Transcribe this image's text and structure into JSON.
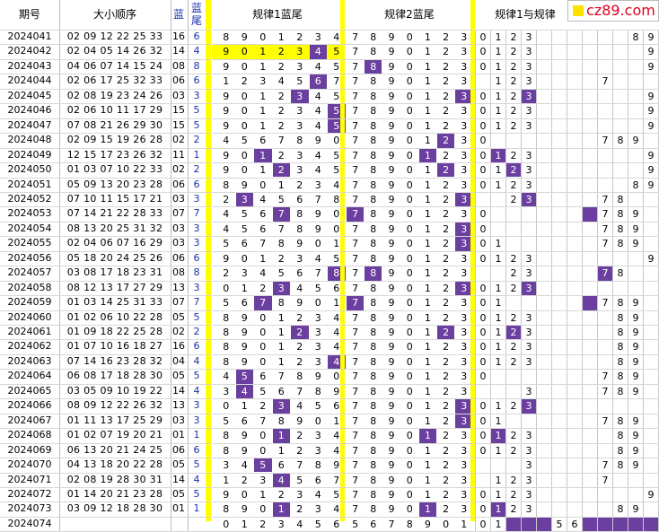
{
  "headers": {
    "period": "期号",
    "draw": "大小顺序",
    "blue": "蓝",
    "blue_tail": "蓝尾",
    "rule1": "规律1蓝尾",
    "rule2": "规律2蓝尾",
    "rule12": "规律1与规律"
  },
  "logo_text": "cz89.com",
  "colors": {
    "mark": "#6b3fa0",
    "highlight": "#ffff00",
    "separator": "#ffff00",
    "blue_text": "#1a2fb0",
    "logo": "#e0001b"
  },
  "rows": [
    {
      "period": "2024041",
      "red": "02 09 12 22 25 33",
      "blue": "16",
      "tail": "6",
      "r1": "8 9 0 1 2 3 4",
      "r1m": [],
      "r2": "7 8 9 0 1 2 3",
      "r2m": [],
      "c": [
        "0",
        "1",
        "2",
        "3",
        "",
        "",
        "",
        "",
        "",
        "",
        "8",
        "9"
      ],
      "cm": [],
      "hl": false
    },
    {
      "period": "2024042",
      "red": "02 04 05 14 26 32",
      "blue": "14",
      "tail": "4",
      "r1": "9 0 1 2 3 4 5",
      "r1m": [
        5
      ],
      "r2": "7 8 9 0 1 2 3",
      "r2m": [],
      "c": [
        "0",
        "1",
        "2",
        "3",
        "",
        "",
        "",
        "",
        "",
        "",
        "",
        "9"
      ],
      "cm": [],
      "hl": true
    },
    {
      "period": "2024043",
      "red": "04 06 07 14 15 24",
      "blue": "08",
      "tail": "8",
      "r1": "9 0 1 2 3 4 5",
      "r1m": [],
      "r2": "7 8 9 0 1 2 3",
      "r2m": [
        1
      ],
      "c": [
        "0",
        "1",
        "2",
        "3",
        "",
        "",
        "",
        "",
        "",
        "",
        "",
        "9"
      ],
      "cm": [],
      "hl": false
    },
    {
      "period": "2024044",
      "red": "02 06 17 25 32 33",
      "blue": "06",
      "tail": "6",
      "r1": "1 2 3 4 5 6 7",
      "r1m": [
        5
      ],
      "r2": "7 8 9 0 1 2 3",
      "r2m": [],
      "c": [
        "",
        "1",
        "2",
        "3",
        "",
        "",
        "",
        "",
        "7",
        "",
        "",
        ""
      ],
      "cm": [],
      "hl": false
    },
    {
      "period": "2024045",
      "red": "02 08 19 23 24 26",
      "blue": "03",
      "tail": "3",
      "r1": "9 0 1 2 3 4 5",
      "r1m": [
        4
      ],
      "r2": "7 8 9 0 1 2 3",
      "r2m": [
        6
      ],
      "c": [
        "0",
        "1",
        "2",
        "3",
        "",
        "",
        "",
        "",
        "",
        "",
        "",
        "9"
      ],
      "cm": [
        3
      ],
      "hl": false
    },
    {
      "period": "2024046",
      "red": "02 06 10 11 17 29",
      "blue": "15",
      "tail": "5",
      "r1": "9 0 1 2 3 4 5",
      "r1m": [
        6
      ],
      "r2": "7 8 9 0 1 2 3",
      "r2m": [],
      "c": [
        "0",
        "1",
        "2",
        "3",
        "",
        "",
        "",
        "",
        "",
        "",
        "",
        "9"
      ],
      "cm": [],
      "hl": false
    },
    {
      "period": "2024047",
      "red": "07 08 21 26 29 30",
      "blue": "15",
      "tail": "5",
      "r1": "9 0 1 2 3 4 5",
      "r1m": [
        6
      ],
      "r2": "7 8 9 0 1 2 3",
      "r2m": [],
      "c": [
        "0",
        "1",
        "2",
        "3",
        "",
        "",
        "",
        "",
        "",
        "",
        "",
        "9"
      ],
      "cm": [],
      "hl": false
    },
    {
      "period": "2024048",
      "red": "02 09 15 19 26 28",
      "blue": "02",
      "tail": "2",
      "r1": "4 5 6 7 8 9 0",
      "r1m": [],
      "r2": "7 8 9 0 1 2 3",
      "r2m": [
        5
      ],
      "c": [
        "0",
        "",
        "",
        "",
        "",
        "",
        "",
        "",
        "7",
        "8",
        "9",
        ""
      ],
      "cm": [],
      "hl": false
    },
    {
      "period": "2024049",
      "red": "12 15 17 23 26 32",
      "blue": "11",
      "tail": "1",
      "r1": "9 0 1 2 3 4 5",
      "r1m": [
        2
      ],
      "r2": "7 8 9 0 1 2 3",
      "r2m": [
        4
      ],
      "c": [
        "0",
        "1",
        "2",
        "3",
        "",
        "",
        "",
        "",
        "",
        "",
        "",
        "9"
      ],
      "cm": [
        1
      ],
      "hl": false
    },
    {
      "period": "2024050",
      "red": "01 03 07 10 22 33",
      "blue": "02",
      "tail": "2",
      "r1": "9 0 1 2 3 4 5",
      "r1m": [
        3
      ],
      "r2": "7 8 9 0 1 2 3",
      "r2m": [
        5
      ],
      "c": [
        "0",
        "1",
        "2",
        "3",
        "",
        "",
        "",
        "",
        "",
        "",
        "",
        "9"
      ],
      "cm": [
        2
      ],
      "hl": false
    },
    {
      "period": "2024051",
      "red": "05 09 13 20 23 28",
      "blue": "06",
      "tail": "6",
      "r1": "8 9 0 1 2 3 4",
      "r1m": [],
      "r2": "7 8 9 0 1 2 3",
      "r2m": [],
      "c": [
        "0",
        "1",
        "2",
        "3",
        "",
        "",
        "",
        "",
        "",
        "",
        "8",
        "9"
      ],
      "cm": [],
      "hl": false
    },
    {
      "period": "2024052",
      "red": "07 10 11 15 17 21",
      "blue": "03",
      "tail": "3",
      "r1": "2 3 4 5 6 7 8",
      "r1m": [
        1
      ],
      "r2": "7 8 9 0 1 2 3",
      "r2m": [
        6
      ],
      "c": [
        "",
        "",
        "2",
        "3",
        "",
        "",
        "",
        "",
        "7",
        "8",
        "",
        ""
      ],
      "cm": [
        3
      ],
      "hl": false
    },
    {
      "period": "2024053",
      "red": "07 14 21 22 28 33",
      "blue": "07",
      "tail": "7",
      "r1": "4 5 6 7 8 9 0",
      "r1m": [
        3
      ],
      "r2": "7 8 9 0 1 2 3",
      "r2m": [
        0
      ],
      "c": [
        "0",
        "",
        "",
        "",
        "",
        "",
        "",
        "",
        "7",
        "8",
        "9",
        ""
      ],
      "cm": [
        7
      ],
      "hl": false
    },
    {
      "period": "2024054",
      "red": "08 13 20 25 31 32",
      "blue": "03",
      "tail": "3",
      "r1": "4 5 6 7 8 9 0",
      "r1m": [],
      "r2": "7 8 9 0 1 2 3",
      "r2m": [
        6
      ],
      "c": [
        "0",
        "",
        "",
        "",
        "",
        "",
        "",
        "",
        "7",
        "8",
        "9",
        ""
      ],
      "cm": [],
      "hl": false
    },
    {
      "period": "2024055",
      "red": "02 04 06 07 16 29",
      "blue": "03",
      "tail": "3",
      "r1": "5 6 7 8 9 0 1",
      "r1m": [],
      "r2": "7 8 9 0 1 2 3",
      "r2m": [
        6
      ],
      "c": [
        "0",
        "1",
        "",
        "",
        "",
        "",
        "",
        "",
        "7",
        "8",
        "9",
        ""
      ],
      "cm": [],
      "hl": false
    },
    {
      "period": "2024056",
      "red": "05 18 20 24 25 26",
      "blue": "06",
      "tail": "6",
      "r1": "9 0 1 2 3 4 5",
      "r1m": [],
      "r2": "7 8 9 0 1 2 3",
      "r2m": [],
      "c": [
        "0",
        "1",
        "2",
        "3",
        "",
        "",
        "",
        "",
        "",
        "",
        "",
        "9"
      ],
      "cm": [],
      "hl": false
    },
    {
      "period": "2024057",
      "red": "03 08 17 18 23 31",
      "blue": "08",
      "tail": "8",
      "r1": "2 3 4 5 6 7 8",
      "r1m": [
        6
      ],
      "r2": "7 8 9 0 1 2 3",
      "r2m": [
        1
      ],
      "c": [
        "",
        "",
        "2",
        "3",
        "",
        "",
        "",
        "",
        "7",
        "8",
        "",
        ""
      ],
      "cm": [
        8
      ],
      "hl": false
    },
    {
      "period": "2024058",
      "red": "08 12 13 17 27 29",
      "blue": "13",
      "tail": "3",
      "r1": "0 1 2 3 4 5 6",
      "r1m": [
        3
      ],
      "r2": "7 8 9 0 1 2 3",
      "r2m": [
        6
      ],
      "c": [
        "0",
        "1",
        "2",
        "3",
        "",
        "",
        "",
        "",
        "",
        "",
        "",
        ""
      ],
      "cm": [
        3
      ],
      "hl": false
    },
    {
      "period": "2024059",
      "red": "01 03 14 25 31 33",
      "blue": "07",
      "tail": "7",
      "r1": "5 6 7 8 9 0 1",
      "r1m": [
        2
      ],
      "r2": "7 8 9 0 1 2 3",
      "r2m": [
        0
      ],
      "c": [
        "0",
        "1",
        "",
        "",
        "",
        "",
        "",
        "",
        "7",
        "8",
        "9",
        ""
      ],
      "cm": [
        7
      ],
      "hl": false
    },
    {
      "period": "2024060",
      "red": "01 02 06 10 22 28",
      "blue": "05",
      "tail": "5",
      "r1": "8 9 0 1 2 3 4",
      "r1m": [],
      "r2": "7 8 9 0 1 2 3",
      "r2m": [],
      "c": [
        "0",
        "1",
        "2",
        "3",
        "",
        "",
        "",
        "",
        "",
        "8",
        "9",
        ""
      ],
      "cm": [],
      "hl": false
    },
    {
      "period": "2024061",
      "red": "01 09 18 22 25 28",
      "blue": "02",
      "tail": "2",
      "r1": "8 9 0 1 2 3 4",
      "r1m": [
        4
      ],
      "r2": "7 8 9 0 1 2 3",
      "r2m": [
        5
      ],
      "c": [
        "0",
        "1",
        "2",
        "3",
        "",
        "",
        "",
        "",
        "",
        "8",
        "9",
        ""
      ],
      "cm": [
        2
      ],
      "hl": false
    },
    {
      "period": "2024062",
      "red": "01 07 10 16 18 27",
      "blue": "16",
      "tail": "6",
      "r1": "8 9 0 1 2 3 4",
      "r1m": [],
      "r2": "7 8 9 0 1 2 3",
      "r2m": [],
      "c": [
        "0",
        "1",
        "2",
        "3",
        "",
        "",
        "",
        "",
        "",
        "8",
        "9",
        ""
      ],
      "cm": [],
      "hl": false
    },
    {
      "period": "2024063",
      "red": "07 14 16 23 28 32",
      "blue": "04",
      "tail": "4",
      "r1": "8 9 0 1 2 3 4",
      "r1m": [
        6
      ],
      "r2": "7 8 9 0 1 2 3",
      "r2m": [],
      "c": [
        "0",
        "1",
        "2",
        "3",
        "",
        "",
        "",
        "",
        "",
        "8",
        "9",
        ""
      ],
      "cm": [],
      "hl": false
    },
    {
      "period": "2024064",
      "red": "06 08 17 18 28 30",
      "blue": "05",
      "tail": "5",
      "r1": "4 5 6 7 8 9 0",
      "r1m": [
        1
      ],
      "r2": "7 8 9 0 1 2 3",
      "r2m": [],
      "c": [
        "0",
        "",
        "",
        "",
        "",
        "",
        "",
        "",
        "7",
        "8",
        "9",
        ""
      ],
      "cm": [],
      "hl": false
    },
    {
      "period": "2024065",
      "red": "03 05 09 10 19 22",
      "blue": "14",
      "tail": "4",
      "r1": "3 4 5 6 7 8 9",
      "r1m": [
        1
      ],
      "r2": "7 8 9 0 1 2 3",
      "r2m": [],
      "c": [
        "",
        "",
        "",
        "3",
        "",
        "",
        "",
        "",
        "7",
        "8",
        "9",
        ""
      ],
      "cm": [],
      "hl": false
    },
    {
      "period": "2024066",
      "red": "08 09 12 22 26 32",
      "blue": "13",
      "tail": "3",
      "r1": "0 1 2 3 4 5 6",
      "r1m": [
        3
      ],
      "r2": "7 8 9 0 1 2 3",
      "r2m": [
        6
      ],
      "c": [
        "0",
        "1",
        "2",
        "3",
        "",
        "",
        "",
        "",
        "",
        "",
        "",
        ""
      ],
      "cm": [
        3
      ],
      "hl": false
    },
    {
      "period": "2024067",
      "red": "01 11 13 17 25 29",
      "blue": "03",
      "tail": "3",
      "r1": "5 6 7 8 9 0 1",
      "r1m": [],
      "r2": "7 8 9 0 1 2 3",
      "r2m": [
        6
      ],
      "c": [
        "0",
        "1",
        "",
        "",
        "",
        "",
        "",
        "",
        "7",
        "8",
        "9",
        ""
      ],
      "cm": [],
      "hl": false
    },
    {
      "period": "2024068",
      "red": "01 02 07 19 20 21",
      "blue": "01",
      "tail": "1",
      "r1": "8 9 0 1 2 3 4",
      "r1m": [
        3
      ],
      "r2": "7 8 9 0 1 2 3",
      "r2m": [
        4
      ],
      "c": [
        "0",
        "1",
        "2",
        "3",
        "",
        "",
        "",
        "",
        "",
        "8",
        "9",
        ""
      ],
      "cm": [
        1
      ],
      "hl": false
    },
    {
      "period": "2024069",
      "red": "06 13 20 21 24 25",
      "blue": "06",
      "tail": "6",
      "r1": "8 9 0 1 2 3 4",
      "r1m": [],
      "r2": "7 8 9 0 1 2 3",
      "r2m": [],
      "c": [
        "0",
        "1",
        "2",
        "3",
        "",
        "",
        "",
        "",
        "",
        "8",
        "9",
        ""
      ],
      "cm": [],
      "hl": false
    },
    {
      "period": "2024070",
      "red": "04 13 18 20 22 28",
      "blue": "05",
      "tail": "5",
      "r1": "3 4 5 6 7 8 9",
      "r1m": [
        2
      ],
      "r2": "7 8 9 0 1 2 3",
      "r2m": [],
      "c": [
        "",
        "",
        "",
        "3",
        "",
        "",
        "",
        "",
        "7",
        "8",
        "9",
        ""
      ],
      "cm": [],
      "hl": false
    },
    {
      "period": "2024071",
      "red": "02 08 19 28 30 31",
      "blue": "14",
      "tail": "4",
      "r1": "1 2 3 4 5 6 7",
      "r1m": [
        3
      ],
      "r2": "7 8 9 0 1 2 3",
      "r2m": [],
      "c": [
        "",
        "1",
        "2",
        "3",
        "",
        "",
        "",
        "",
        "7",
        "",
        "",
        ""
      ],
      "cm": [],
      "hl": false
    },
    {
      "period": "2024072",
      "red": "01 14 20 21 23 28",
      "blue": "05",
      "tail": "5",
      "r1": "9 0 1 2 3 4 5",
      "r1m": [],
      "r2": "7 8 9 0 1 2 3",
      "r2m": [],
      "c": [
        "0",
        "1",
        "2",
        "3",
        "",
        "",
        "",
        "",
        "",
        "",
        "",
        "9"
      ],
      "cm": [],
      "hl": false
    },
    {
      "period": "2024073",
      "red": "03 09 12 18 28 30",
      "blue": "01",
      "tail": "1",
      "r1": "8 9 0 1 2 3 4",
      "r1m": [
        3
      ],
      "r2": "7 8 9 0 1 2 3",
      "r2m": [
        4
      ],
      "c": [
        "0",
        "1",
        "2",
        "3",
        "",
        "",
        "",
        "",
        "",
        "8",
        "9",
        ""
      ],
      "cm": [
        1
      ],
      "hl": false
    },
    {
      "period": "2024074",
      "red": "",
      "blue": "",
      "tail": "",
      "r1": "0 1 2 3 4 5 6",
      "r1m": [],
      "r2": "5 6 7 8 9 0 1",
      "r2m": [],
      "c": [
        "0",
        "1",
        "",
        "",
        "",
        "5",
        "6",
        "",
        "",
        "",
        "",
        ""
      ],
      "cm": [
        2,
        3,
        4,
        7,
        8,
        9,
        10,
        11
      ],
      "hl": false
    }
  ]
}
